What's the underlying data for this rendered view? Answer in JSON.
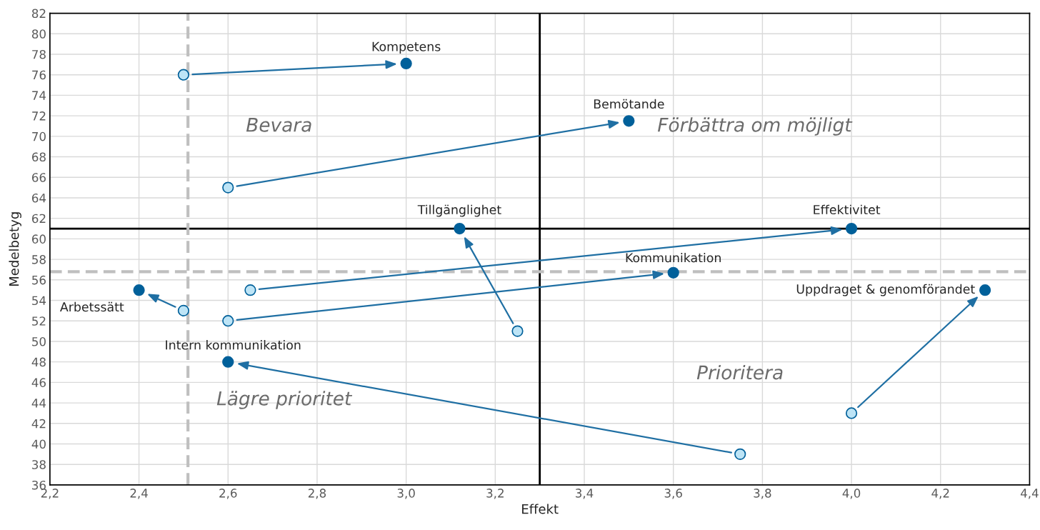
{
  "chart_data": {
    "type": "scatter",
    "xlabel": "Effekt",
    "ylabel": "Medelbetyg",
    "xlim": [
      2.2,
      4.4
    ],
    "ylim": [
      36,
      82
    ],
    "xticks": [
      {
        "value": 2.2,
        "label": "2,2"
      },
      {
        "value": 2.4,
        "label": "2,4"
      },
      {
        "value": 2.6,
        "label": "2,6"
      },
      {
        "value": 2.8,
        "label": "2,8"
      },
      {
        "value": 3.0,
        "label": "3,0"
      },
      {
        "value": 3.2,
        "label": "3,2"
      },
      {
        "value": 3.4,
        "label": "3,4"
      },
      {
        "value": 3.6,
        "label": "3,6"
      },
      {
        "value": 3.8,
        "label": "3,8"
      },
      {
        "value": 4.0,
        "label": "4,0"
      },
      {
        "value": 4.2,
        "label": "4,2"
      },
      {
        "value": 4.4,
        "label": "4,4"
      }
    ],
    "yticks": [
      36,
      38,
      40,
      42,
      44,
      46,
      48,
      50,
      52,
      54,
      56,
      58,
      60,
      62,
      64,
      66,
      68,
      70,
      72,
      74,
      76,
      78,
      80,
      82
    ],
    "grid": true,
    "legend": false,
    "marker": "circle",
    "series": [
      {
        "color": "#bde4f6",
        "x": [
          2.5,
          2.6,
          3.25,
          2.65,
          2.6,
          2.5,
          4.0,
          3.75
        ],
        "values": [
          76,
          65,
          51,
          55,
          52,
          53,
          43,
          39
        ]
      },
      {
        "color": "#00609a",
        "x": [
          3.0,
          3.5,
          3.12,
          4.0,
          3.6,
          2.4,
          4.3,
          2.6
        ],
        "values": [
          77.1,
          71.5,
          61,
          61,
          56.7,
          55,
          55,
          48
        ]
      }
    ],
    "ref_lines": [
      {
        "axis": "x",
        "value": 3.3,
        "color": "#000000",
        "line_style": "solid"
      },
      {
        "axis": "y",
        "value": 61,
        "color": "#000000",
        "line_style": "solid"
      },
      {
        "axis": "x",
        "value": 2.51,
        "color": "#bfbfbf",
        "line_style": "dashed"
      },
      {
        "axis": "y",
        "value": 56.8,
        "color": "#bfbfbf",
        "line_style": "dashed"
      }
    ],
    "annotations": [
      {
        "text": "Kompetens",
        "x": 3.0,
        "y": 77.1
      },
      {
        "text": "Bemötande",
        "x": 3.5,
        "y": 71.5
      },
      {
        "text": "Tillgänglighet",
        "x": 3.12,
        "y": 61
      },
      {
        "text": "Effektivitet",
        "x": 4.0,
        "y": 61
      },
      {
        "text": "Kommunikation",
        "x": 3.6,
        "y": 56.7
      },
      {
        "text": "Arbetssätt",
        "x": 2.4,
        "y": 55
      },
      {
        "text": "Uppdraget & genomförandet",
        "x": 4.3,
        "y": 55
      },
      {
        "text": "Intern kommunikation",
        "x": 2.6,
        "y": 48
      },
      "Bevara",
      "Förbättra om möjligt",
      "Lägre prioritet",
      "Prioritera"
    ]
  }
}
